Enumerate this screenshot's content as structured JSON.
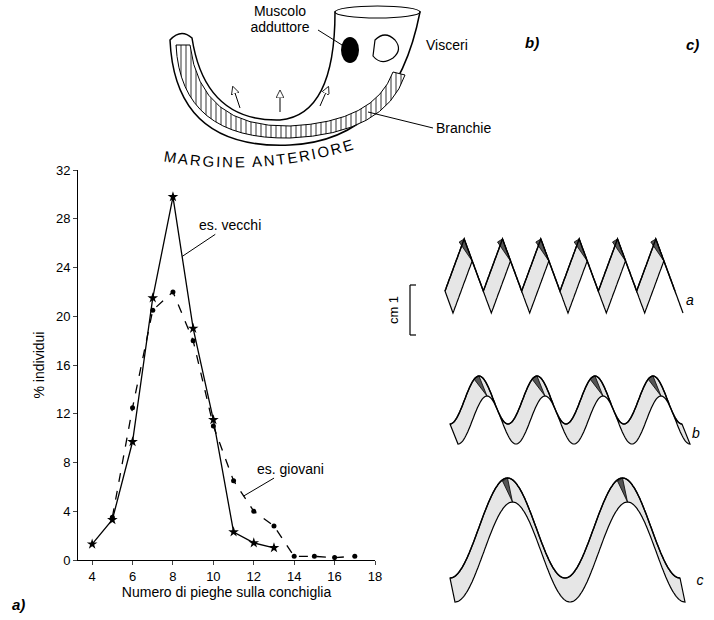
{
  "chart_data": {
    "type": "line",
    "panel_label": "a)",
    "x_label": "Numero di pieghe sulla conchiglia",
    "y_label": "% individui",
    "x": [
      4,
      5,
      6,
      7,
      8,
      9,
      10,
      11,
      12,
      13,
      14,
      15,
      16,
      17
    ],
    "series": [
      {
        "name": "es. vecchi",
        "color": "#000000",
        "line_style": "solid",
        "marker": "star",
        "values": [
          1.3,
          3.3,
          9.7,
          21.5,
          29.8,
          19,
          11.5,
          2.3,
          1.4,
          1.0,
          null,
          null,
          null,
          null
        ]
      },
      {
        "name": "es. giovani",
        "color": "#000000",
        "line_style": "dash",
        "marker": "circle",
        "values": [
          null,
          3.5,
          12.5,
          20.5,
          22,
          18,
          11,
          6.5,
          4,
          2.8,
          0.3,
          0.3,
          0.2,
          0.3
        ]
      }
    ],
    "xlim": [
      3.3,
      18
    ],
    "xticks": [
      4,
      6,
      8,
      10,
      12,
      14,
      16,
      18
    ],
    "ylim": [
      0,
      32
    ],
    "yticks": [
      0,
      4,
      8,
      12,
      16,
      20,
      24,
      28,
      32
    ],
    "grid": false
  },
  "diagram_b": {
    "panel_label": "b)",
    "muscle": "Muscolo adduttore",
    "viscera": "Visceri",
    "gills": "Branchie",
    "margin": "MARGINE ANTERIORE"
  },
  "diagram_c": {
    "panel_label": "c)",
    "scale_label": "cm 1",
    "shapes": [
      "a",
      "b",
      "c"
    ]
  }
}
